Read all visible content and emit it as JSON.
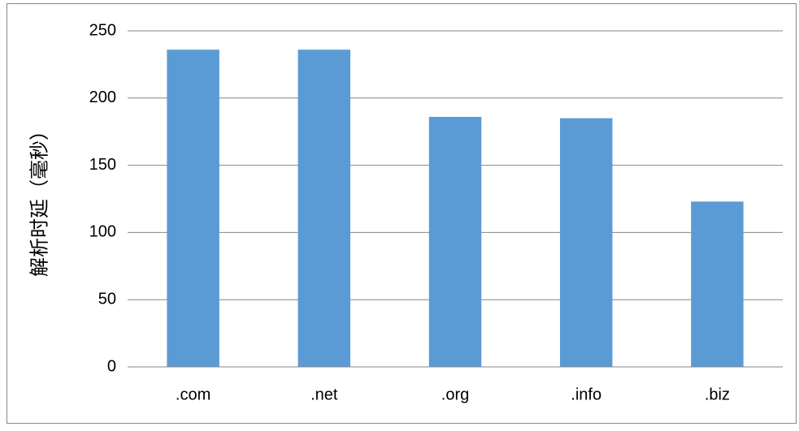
{
  "chart_data": {
    "type": "bar",
    "y_label": "解析时延（毫秒）",
    "categories": [
      ".com",
      ".net",
      ".org",
      ".info",
      ".biz"
    ],
    "values": [
      236,
      236,
      186,
      185,
      123
    ],
    "color": "#5b9bd5",
    "ylim": [
      0,
      250
    ],
    "yticks": [
      0,
      50,
      100,
      150,
      200,
      250
    ],
    "grid": true
  }
}
